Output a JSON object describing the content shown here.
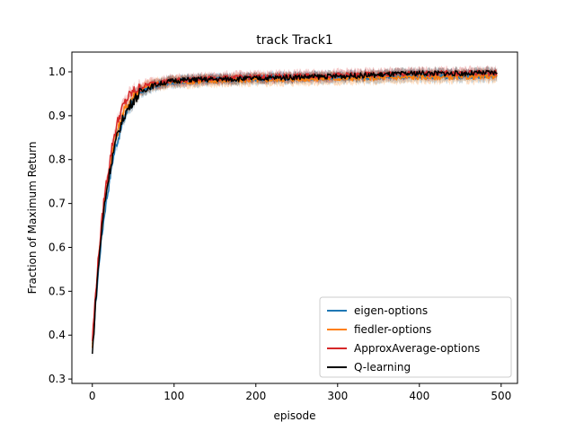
{
  "chart_data": {
    "type": "line",
    "title": "track  Track1",
    "xlabel": "episode",
    "ylabel": "Fraction of Maximum Return",
    "xlim": [
      -25,
      520
    ],
    "ylim": [
      0.29,
      1.045
    ],
    "xticks": [
      0,
      100,
      200,
      300,
      400,
      500
    ],
    "yticks": [
      0.3,
      0.4,
      0.5,
      0.6,
      0.7,
      0.8,
      0.9,
      1.0
    ],
    "xtick_labels": [
      "0",
      "100",
      "200",
      "300",
      "400",
      "500"
    ],
    "ytick_labels": [
      "0.3",
      "0.4",
      "0.5",
      "0.6",
      "0.7",
      "0.8",
      "0.9",
      "1.0"
    ],
    "grid": false,
    "legend_position": "bottom-right",
    "series": [
      {
        "name": "eigen-options",
        "color": "#1f77b4",
        "x": [
          0,
          5,
          10,
          15,
          20,
          25,
          30,
          35,
          40,
          45,
          50,
          60,
          70,
          80,
          90,
          100,
          120,
          150,
          200,
          250,
          300,
          350,
          400,
          450,
          495
        ],
        "y": [
          0.37,
          0.49,
          0.6,
          0.68,
          0.74,
          0.8,
          0.84,
          0.87,
          0.9,
          0.92,
          0.935,
          0.955,
          0.965,
          0.97,
          0.975,
          0.978,
          0.98,
          0.982,
          0.985,
          0.987,
          0.988,
          0.989,
          0.99,
          0.99,
          0.99
        ],
        "band": 0.012
      },
      {
        "name": "fiedler-options",
        "color": "#ff7f0e",
        "x": [
          0,
          5,
          10,
          15,
          20,
          25,
          30,
          35,
          40,
          45,
          50,
          60,
          70,
          80,
          90,
          100,
          120,
          150,
          200,
          250,
          300,
          350,
          400,
          450,
          495
        ],
        "y": [
          0.38,
          0.51,
          0.62,
          0.7,
          0.76,
          0.82,
          0.86,
          0.89,
          0.915,
          0.93,
          0.945,
          0.96,
          0.968,
          0.972,
          0.975,
          0.977,
          0.978,
          0.98,
          0.982,
          0.984,
          0.985,
          0.986,
          0.988,
          0.988,
          0.99
        ],
        "band": 0.013
      },
      {
        "name": "ApproxAverage-options",
        "color": "#d62728",
        "x": [
          0,
          5,
          10,
          15,
          20,
          25,
          30,
          35,
          40,
          45,
          50,
          60,
          70,
          80,
          90,
          100,
          120,
          150,
          200,
          250,
          300,
          350,
          400,
          450,
          495
        ],
        "y": [
          0.39,
          0.52,
          0.63,
          0.72,
          0.78,
          0.84,
          0.88,
          0.91,
          0.93,
          0.945,
          0.955,
          0.965,
          0.972,
          0.976,
          0.978,
          0.98,
          0.982,
          0.985,
          0.988,
          0.99,
          0.992,
          0.994,
          0.996,
          0.997,
          0.998
        ],
        "band": 0.012
      },
      {
        "name": "Q-learning",
        "color": "#000000",
        "x": [
          0,
          5,
          10,
          15,
          20,
          25,
          30,
          35,
          40,
          45,
          50,
          60,
          70,
          80,
          90,
          100,
          120,
          150,
          200,
          250,
          300,
          350,
          400,
          450,
          495
        ],
        "y": [
          0.355,
          0.5,
          0.61,
          0.7,
          0.76,
          0.81,
          0.85,
          0.88,
          0.905,
          0.92,
          0.935,
          0.955,
          0.965,
          0.972,
          0.976,
          0.98,
          0.982,
          0.983,
          0.985,
          0.988,
          0.99,
          0.993,
          0.997,
          0.996,
          0.998
        ],
        "band": 0.01
      }
    ]
  }
}
